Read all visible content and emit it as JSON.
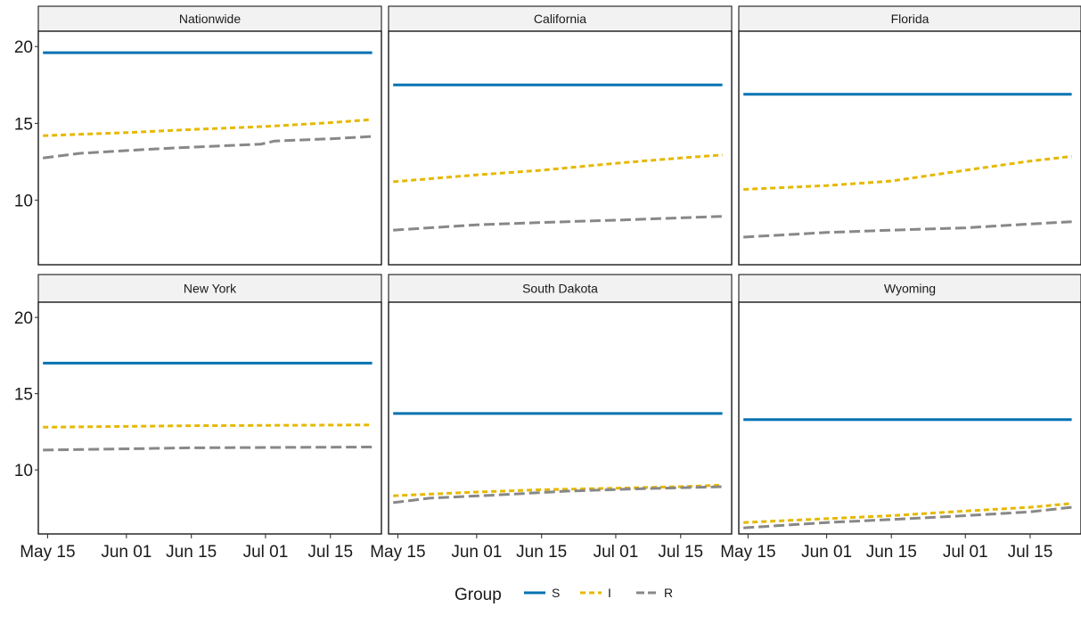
{
  "chart_data": {
    "type": "line",
    "facet_layout": "3 columns x 2 rows",
    "x_ticks": [
      "May 15",
      "Jun 01",
      "Jun 15",
      "Jul 01",
      "Jul 15"
    ],
    "x_tick_dates": [
      "2020-05-15",
      "2020-06-01",
      "2020-06-15",
      "2020-07-01",
      "2020-07-15"
    ],
    "x_range": [
      "2020-05-13",
      "2020-07-26"
    ],
    "y_ticks": [
      10,
      15,
      20
    ],
    "ylim": [
      5.8,
      21.0
    ],
    "grid": false,
    "legend": {
      "title": "Group",
      "placement": "bottom",
      "entries": [
        {
          "label": "S",
          "color": "#0072B2",
          "dash": "solid"
        },
        {
          "label": "I",
          "color": "#E6B800",
          "dash": "dotted"
        },
        {
          "label": "R",
          "color": "#888888",
          "dash": "dashed"
        }
      ]
    },
    "panels": [
      {
        "title": "Nationwide",
        "series": [
          {
            "group": "S",
            "points": [
              [
                "2020-05-14",
                19.6
              ],
              [
                "2020-07-24",
                19.6
              ]
            ]
          },
          {
            "group": "I",
            "points": [
              [
                "2020-05-14",
                14.2
              ],
              [
                "2020-06-01",
                14.4
              ],
              [
                "2020-06-15",
                14.6
              ],
              [
                "2020-07-01",
                14.8
              ],
              [
                "2020-07-15",
                15.05
              ],
              [
                "2020-07-24",
                15.25
              ]
            ]
          },
          {
            "group": "R",
            "points": [
              [
                "2020-05-14",
                12.75
              ],
              [
                "2020-05-22",
                13.05
              ],
              [
                "2020-06-05",
                13.3
              ],
              [
                "2020-06-15",
                13.45
              ],
              [
                "2020-06-30",
                13.65
              ],
              [
                "2020-07-03",
                13.85
              ],
              [
                "2020-07-15",
                14.0
              ],
              [
                "2020-07-24",
                14.15
              ]
            ]
          }
        ]
      },
      {
        "title": "California",
        "series": [
          {
            "group": "S",
            "points": [
              [
                "2020-05-14",
                17.5
              ],
              [
                "2020-07-24",
                17.5
              ]
            ]
          },
          {
            "group": "I",
            "points": [
              [
                "2020-05-14",
                11.2
              ],
              [
                "2020-06-01",
                11.65
              ],
              [
                "2020-06-15",
                11.95
              ],
              [
                "2020-07-01",
                12.4
              ],
              [
                "2020-07-15",
                12.75
              ],
              [
                "2020-07-24",
                12.95
              ]
            ]
          },
          {
            "group": "R",
            "points": [
              [
                "2020-05-14",
                8.05
              ],
              [
                "2020-06-01",
                8.4
              ],
              [
                "2020-06-15",
                8.55
              ],
              [
                "2020-07-01",
                8.7
              ],
              [
                "2020-07-15",
                8.85
              ],
              [
                "2020-07-24",
                8.95
              ]
            ]
          }
        ]
      },
      {
        "title": "Florida",
        "series": [
          {
            "group": "S",
            "points": [
              [
                "2020-05-14",
                16.9
              ],
              [
                "2020-07-24",
                16.9
              ]
            ]
          },
          {
            "group": "I",
            "points": [
              [
                "2020-05-14",
                10.7
              ],
              [
                "2020-06-01",
                10.95
              ],
              [
                "2020-06-15",
                11.25
              ],
              [
                "2020-07-01",
                11.95
              ],
              [
                "2020-07-15",
                12.55
              ],
              [
                "2020-07-24",
                12.85
              ]
            ]
          },
          {
            "group": "R",
            "points": [
              [
                "2020-05-14",
                7.6
              ],
              [
                "2020-06-01",
                7.9
              ],
              [
                "2020-06-15",
                8.05
              ],
              [
                "2020-07-01",
                8.2
              ],
              [
                "2020-07-15",
                8.45
              ],
              [
                "2020-07-24",
                8.6
              ]
            ]
          }
        ]
      },
      {
        "title": "New York",
        "series": [
          {
            "group": "S",
            "points": [
              [
                "2020-05-14",
                17.0
              ],
              [
                "2020-07-24",
                17.0
              ]
            ]
          },
          {
            "group": "I",
            "points": [
              [
                "2020-05-14",
                12.8
              ],
              [
                "2020-06-15",
                12.9
              ],
              [
                "2020-07-24",
                12.95
              ]
            ]
          },
          {
            "group": "R",
            "points": [
              [
                "2020-05-14",
                11.3
              ],
              [
                "2020-06-15",
                11.45
              ],
              [
                "2020-07-24",
                11.5
              ]
            ]
          }
        ]
      },
      {
        "title": "South Dakota",
        "series": [
          {
            "group": "S",
            "points": [
              [
                "2020-05-14",
                13.7
              ],
              [
                "2020-07-24",
                13.7
              ]
            ]
          },
          {
            "group": "I",
            "points": [
              [
                "2020-05-14",
                8.3
              ],
              [
                "2020-06-01",
                8.55
              ],
              [
                "2020-06-15",
                8.7
              ],
              [
                "2020-07-01",
                8.8
              ],
              [
                "2020-07-15",
                8.9
              ],
              [
                "2020-07-24",
                9.0
              ]
            ]
          },
          {
            "group": "R",
            "points": [
              [
                "2020-05-14",
                7.85
              ],
              [
                "2020-05-22",
                8.15
              ],
              [
                "2020-06-05",
                8.35
              ],
              [
                "2020-06-20",
                8.6
              ],
              [
                "2020-07-05",
                8.75
              ],
              [
                "2020-07-24",
                8.9
              ]
            ]
          }
        ]
      },
      {
        "title": "Wyoming",
        "series": [
          {
            "group": "S",
            "points": [
              [
                "2020-05-14",
                13.3
              ],
              [
                "2020-07-24",
                13.3
              ]
            ]
          },
          {
            "group": "I",
            "points": [
              [
                "2020-05-14",
                6.55
              ],
              [
                "2020-06-01",
                6.8
              ],
              [
                "2020-06-15",
                7.0
              ],
              [
                "2020-07-01",
                7.3
              ],
              [
                "2020-07-15",
                7.55
              ],
              [
                "2020-07-24",
                7.8
              ]
            ]
          },
          {
            "group": "R",
            "points": [
              [
                "2020-05-14",
                6.2
              ],
              [
                "2020-06-01",
                6.55
              ],
              [
                "2020-06-15",
                6.75
              ],
              [
                "2020-07-01",
                7.0
              ],
              [
                "2020-07-15",
                7.25
              ],
              [
                "2020-07-24",
                7.55
              ]
            ]
          }
        ]
      }
    ]
  }
}
